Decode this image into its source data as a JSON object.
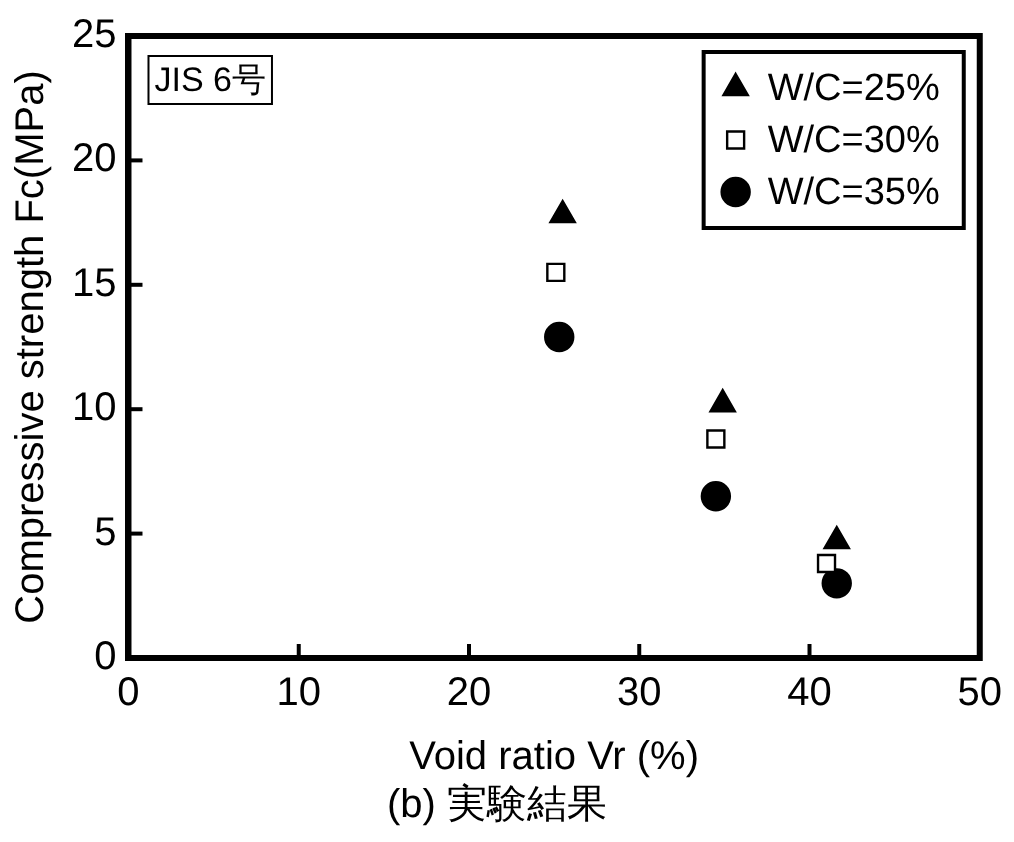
{
  "chart_data": {
    "type": "scatter",
    "title": "(b) 実験結果",
    "xlabel": "Void ratio Vr (%)",
    "ylabel": "Compressive strength Fc(MPa)",
    "annotations": [
      "JIS 6号"
    ],
    "xlim": [
      0,
      50
    ],
    "xticks": [
      0,
      10,
      20,
      30,
      40,
      50
    ],
    "ylim": [
      0,
      25
    ],
    "yticks": [
      0,
      5,
      10,
      15,
      20,
      25
    ],
    "grid": false,
    "legend": "top right",
    "series": [
      {
        "name": "W/C=25%",
        "color": "#000000",
        "marker": "triangle",
        "x": [
          25.5,
          34.9,
          41.6
        ],
        "values": [
          17.8,
          10.2,
          4.7
        ]
      },
      {
        "name": "W/C=30%",
        "color": "#000000",
        "marker": "square",
        "x": [
          25.1,
          34.5,
          41.0
        ],
        "values": [
          15.5,
          8.8,
          3.8
        ]
      },
      {
        "name": "W/C=35%",
        "color": "#000000",
        "marker": "circle",
        "x": [
          25.3,
          34.5,
          41.6
        ],
        "values": [
          12.9,
          6.5,
          3.0
        ]
      }
    ]
  }
}
